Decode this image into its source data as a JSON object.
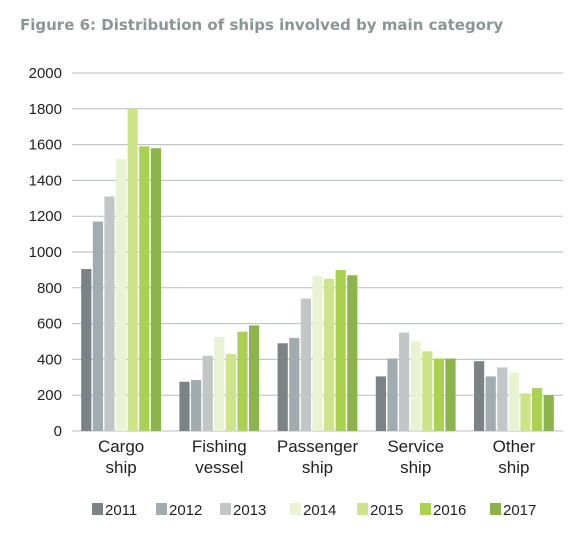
{
  "title": "Figure 6: Distribution of ships involved by main category",
  "chart_data": {
    "type": "bar",
    "title": "Figure 6: Distribution of ships involved by main category",
    "categories": [
      [
        "Cargo",
        "ship"
      ],
      [
        "Fishing",
        "vessel"
      ],
      [
        "Passenger",
        "ship"
      ],
      [
        "Service",
        "ship"
      ],
      [
        "Other",
        "ship"
      ]
    ],
    "series": [
      {
        "name": "2011",
        "color": "#7b8387",
        "values": [
          905,
          275,
          490,
          305,
          390
        ]
      },
      {
        "name": "2012",
        "color": "#a2abaf",
        "values": [
          1170,
          285,
          520,
          405,
          305
        ]
      },
      {
        "name": "2013",
        "color": "#c3c6c6",
        "values": [
          1310,
          420,
          740,
          550,
          355
        ]
      },
      {
        "name": "2014",
        "color": "#eaf2d4",
        "values": [
          1520,
          525,
          865,
          500,
          325
        ]
      },
      {
        "name": "2015",
        "color": "#cde48b",
        "values": [
          1800,
          430,
          850,
          445,
          210
        ]
      },
      {
        "name": "2016",
        "color": "#abd152",
        "values": [
          1590,
          555,
          900,
          405,
          240
        ]
      },
      {
        "name": "2017",
        "color": "#8bb44c",
        "values": [
          1580,
          590,
          870,
          405,
          200
        ]
      }
    ],
    "ylim": [
      0,
      2000
    ],
    "yticks": [
      0,
      200,
      400,
      600,
      800,
      1000,
      1200,
      1400,
      1600,
      1800,
      2000
    ],
    "grid": true,
    "legend": "bottom"
  }
}
